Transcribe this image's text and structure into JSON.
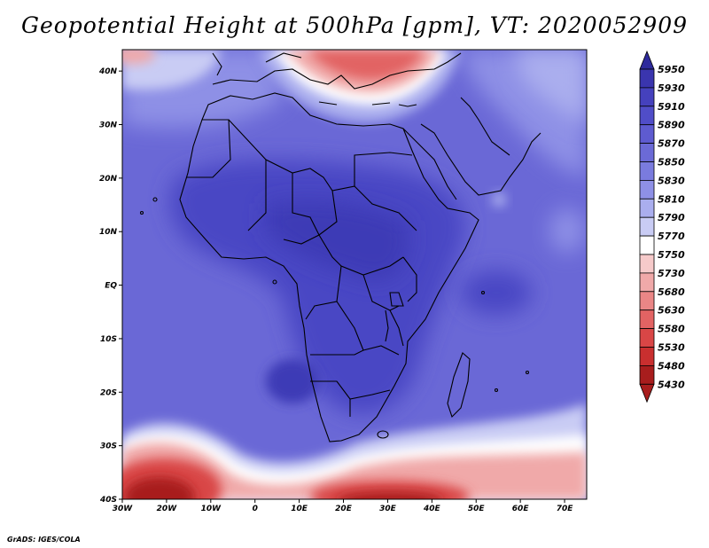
{
  "title": "Geopotential Height at 500hPa [gpm], VT: 2020052909",
  "credit": "GrADS: IGES/COLA",
  "map": {
    "lat_labels": [
      "40N",
      "30N",
      "20N",
      "10N",
      "EQ",
      "10S",
      "20S",
      "30S",
      "40S"
    ],
    "lon_labels": [
      "30W",
      "20W",
      "10W",
      "0",
      "10E",
      "20E",
      "30E",
      "40E",
      "50E",
      "60E",
      "70E"
    ],
    "lat_range": [
      -40,
      44
    ],
    "lon_range": [
      -30,
      75
    ]
  },
  "colorbar": {
    "levels": [
      "5950",
      "5930",
      "5910",
      "5890",
      "5870",
      "5850",
      "5830",
      "5810",
      "5790",
      "5770",
      "5750",
      "5730",
      "5680",
      "5630",
      "5580",
      "5530",
      "5480",
      "5430"
    ],
    "colors": [
      "#2e2a9c",
      "#3a35ae",
      "#4541bd",
      "#504dc8",
      "#5e5bd0",
      "#6b6ad6",
      "#7a7bde",
      "#8e90e6",
      "#aaaeee",
      "#c9ccf4",
      "#ffffff",
      "#f6caca",
      "#f0a9a9",
      "#ea8686",
      "#e26363",
      "#d94646",
      "#c92f2f",
      "#a81d1d"
    ]
  }
}
